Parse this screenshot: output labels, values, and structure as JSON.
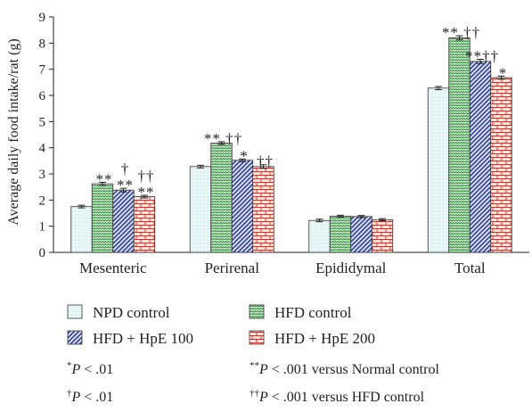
{
  "chart_data": {
    "type": "bar",
    "ylabel": "Average daily food intake/rat (g)",
    "xlabel": "",
    "ylim": [
      0,
      9
    ],
    "yticks": [
      0,
      1,
      2,
      3,
      4,
      5,
      6,
      7,
      8,
      9
    ],
    "categories": [
      "Mesenteric",
      "Perirenal",
      "Epididymal",
      "Total"
    ],
    "series": [
      {
        "name": "NPD control",
        "values": [
          1.75,
          3.28,
          1.22,
          6.28
        ],
        "errors": [
          0.05,
          0.05,
          0.05,
          0.06
        ],
        "color": "#e6f6f7",
        "pattern": "dots"
      },
      {
        "name": "HFD control",
        "values": [
          2.62,
          4.18,
          1.38,
          8.2
        ],
        "errors": [
          0.06,
          0.05,
          0.04,
          0.08
        ],
        "color": "#2f8f3a",
        "pattern": "zigzag"
      },
      {
        "name": "HFD + HpE 100",
        "values": [
          2.38,
          3.52,
          1.37,
          7.3
        ],
        "errors": [
          0.07,
          0.05,
          0.04,
          0.08
        ],
        "color": "#2b3f9e",
        "pattern": "diagonal"
      },
      {
        "name": "HFD + HpE 200",
        "values": [
          2.13,
          3.28,
          1.25,
          6.68
        ],
        "errors": [
          0.05,
          0.07,
          0.04,
          0.06
        ],
        "color": "#c0392b",
        "pattern": "brick"
      }
    ],
    "annotations": [
      {
        "category": 0,
        "series": 1,
        "lines": [
          "**"
        ]
      },
      {
        "category": 0,
        "series": 2,
        "lines": [
          "†",
          "**"
        ]
      },
      {
        "category": 0,
        "series": 3,
        "lines": [
          "††",
          "**"
        ]
      },
      {
        "category": 1,
        "series": 1,
        "lines": [
          "** ††"
        ]
      },
      {
        "category": 1,
        "series": 2,
        "lines": [
          "*"
        ]
      },
      {
        "category": 1,
        "series": 3,
        "lines": [
          "††"
        ]
      },
      {
        "category": 3,
        "series": 1,
        "lines": [
          "** ††"
        ]
      },
      {
        "category": 3,
        "series": 2,
        "lines": [
          "**††"
        ]
      },
      {
        "category": 3,
        "series": 3,
        "lines": [
          "*"
        ]
      }
    ],
    "notes": [
      {
        "symbol": "*",
        "text": "P < .01"
      },
      {
        "symbol": "**",
        "text": "P < .001 versus Normal control"
      },
      {
        "symbol": "†",
        "text": "P < .01"
      },
      {
        "symbol": "††",
        "text": "P < .001 versus HFD control"
      }
    ]
  }
}
